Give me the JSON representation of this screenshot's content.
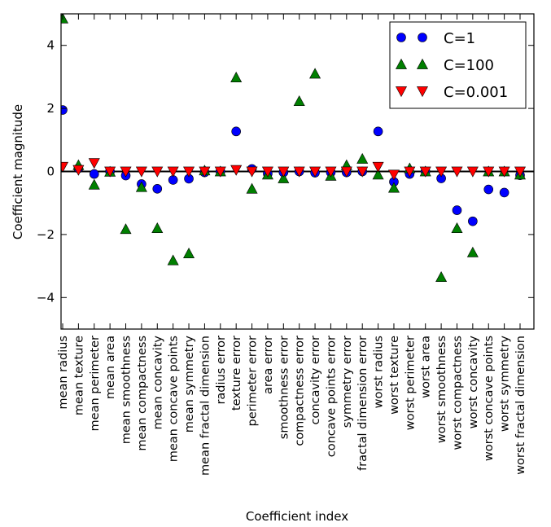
{
  "chart_data": {
    "type": "scatter",
    "xlabel": "Coefficient index",
    "ylabel": "Coefficient magnitude",
    "ylim": [
      -5,
      5
    ],
    "yticks": [
      4,
      2,
      0,
      -2,
      -4
    ],
    "ytick_labels": [
      "4",
      "2",
      "0",
      "−2",
      "−4"
    ],
    "grid": false,
    "legend_position": "top-right",
    "categories": [
      "mean radius",
      "mean texture",
      "mean perimeter",
      "mean area",
      "mean smoothness",
      "mean compactness",
      "mean concavity",
      "mean concave points",
      "mean symmetry",
      "mean fractal dimension",
      "radius error",
      "texture error",
      "perimeter error",
      "area error",
      "smoothness error",
      "compactness error",
      "concavity error",
      "concave points error",
      "symmetry error",
      "fractal dimension error",
      "worst radius",
      "worst texture",
      "worst perimeter",
      "worst area",
      "worst smoothness",
      "worst compactness",
      "worst concavity",
      "worst concave points",
      "worst symmetry",
      "worst fractal dimension"
    ],
    "series": [
      {
        "name": "C=1",
        "marker": "circle",
        "color": "#0000ff",
        "values": [
          1.95,
          0.1,
          -0.08,
          0.0,
          -0.13,
          -0.4,
          -0.55,
          -0.27,
          -0.23,
          -0.03,
          0.0,
          1.27,
          0.08,
          -0.07,
          -0.03,
          0.0,
          -0.04,
          -0.03,
          -0.03,
          0.0,
          1.27,
          -0.33,
          -0.08,
          0.0,
          -0.22,
          -1.23,
          -1.58,
          -0.57,
          -0.67,
          -0.12
        ]
      },
      {
        "name": "C=100",
        "marker": "triangle-up",
        "color": "#007f00",
        "values": [
          4.85,
          0.2,
          -0.42,
          -0.01,
          -1.83,
          -0.5,
          -1.8,
          -2.82,
          -2.6,
          0.03,
          0.0,
          2.98,
          -0.55,
          -0.1,
          -0.22,
          2.23,
          3.1,
          -0.14,
          0.2,
          0.4,
          -0.1,
          -0.52,
          0.1,
          0.0,
          -3.35,
          -1.8,
          -2.57,
          0.0,
          0.0,
          -0.1
        ]
      },
      {
        "name": "C=0.001",
        "marker": "triangle-down",
        "color": "#ff0000",
        "values": [
          0.15,
          0.05,
          0.27,
          0.0,
          0.0,
          0.0,
          0.0,
          0.0,
          0.0,
          0.0,
          0.0,
          0.05,
          0.0,
          0.0,
          0.0,
          0.0,
          0.0,
          0.0,
          0.0,
          0.0,
          0.15,
          -0.1,
          0.0,
          0.0,
          0.0,
          0.0,
          0.0,
          0.0,
          0.0,
          0.0
        ]
      }
    ]
  }
}
